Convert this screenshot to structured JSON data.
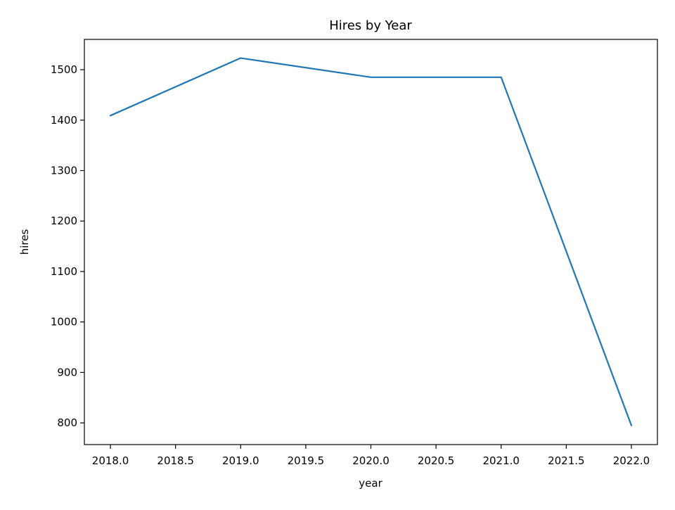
{
  "chart_data": {
    "type": "line",
    "title": "Hires by Year",
    "xlabel": "year",
    "ylabel": "hires",
    "x": [
      2018,
      2019,
      2020,
      2021,
      2022
    ],
    "series": [
      {
        "values": [
          1409,
          1523,
          1485,
          1485,
          795
        ]
      }
    ],
    "xlim": [
      2017.8,
      2022.2
    ],
    "ylim": [
      757,
      1560
    ],
    "x_ticks": [
      2018.0,
      2018.5,
      2019.0,
      2019.5,
      2020.0,
      2020.5,
      2021.0,
      2021.5,
      2022.0
    ],
    "x_tick_labels": [
      "2018.0",
      "2018.5",
      "2019.0",
      "2019.5",
      "2020.0",
      "2020.5",
      "2021.0",
      "2021.5",
      "2022.0"
    ],
    "y_ticks": [
      800,
      900,
      1000,
      1100,
      1200,
      1300,
      1400,
      1500
    ],
    "y_tick_labels": [
      "800",
      "900",
      "1000",
      "1100",
      "1200",
      "1300",
      "1400",
      "1500"
    ],
    "grid": false,
    "line_color": "#1f77b4"
  }
}
